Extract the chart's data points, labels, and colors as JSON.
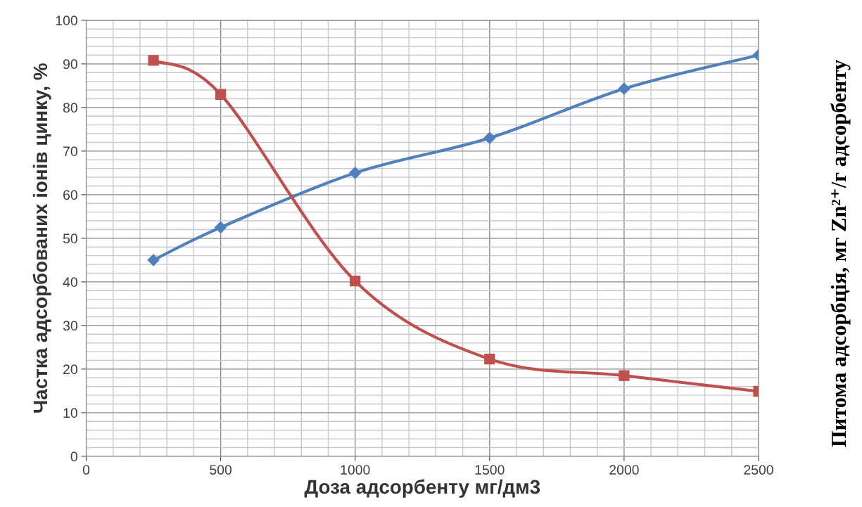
{
  "chart_data": {
    "type": "line",
    "xlabel": "Доза адсорбенту мг/дм3",
    "ylabel": "Частка адсорбованих іонів цинку, %",
    "y2label": "Питома адсорбція, мг Zn²⁺/г адсорбенту",
    "x": [
      250,
      500,
      1000,
      1500,
      2000,
      2500
    ],
    "series": [
      {
        "color": "#4f81bd",
        "marker": "diamond",
        "values": [
          45,
          52.5,
          65,
          73,
          84.3,
          92
        ]
      },
      {
        "color": "#c0504d",
        "marker": "square",
        "values": [
          90.8,
          83,
          40.2,
          22.3,
          18.5,
          14.9
        ]
      }
    ],
    "xlim": [
      0,
      2500
    ],
    "xticks": [
      0,
      500,
      1000,
      1500,
      2000,
      2500
    ],
    "ylim": [
      0,
      100
    ],
    "yticks": [
      0,
      10,
      20,
      30,
      40,
      50,
      60,
      70,
      80,
      90,
      100
    ],
    "grid": true,
    "line_style": "solid"
  }
}
